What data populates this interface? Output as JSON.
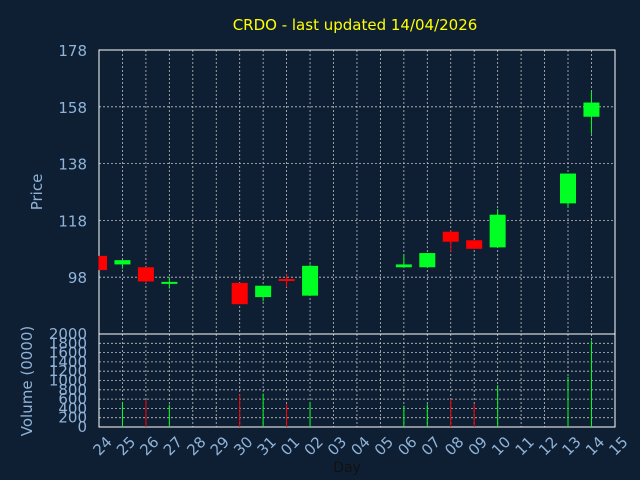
{
  "chart_data": {
    "type": "candlestick",
    "title": "CRDO - last updated 14/04/2026",
    "colors": {
      "background": "#0f1f33",
      "text": "#8fb3d9",
      "title": "#ffff00",
      "grid": "#c0c0c0",
      "up": "#00ff22",
      "down": "#ff0000",
      "frame": "#ffffff"
    },
    "grid": true,
    "x_axis": {
      "label": "Day",
      "ticks": [
        "24",
        "25",
        "26",
        "27",
        "28",
        "29",
        "30",
        "31",
        "01",
        "02",
        "03",
        "04",
        "05",
        "06",
        "07",
        "08",
        "09",
        "10",
        "11",
        "12",
        "13",
        "14",
        "15"
      ]
    },
    "price_axis": {
      "label": "Price",
      "range": [
        78,
        178
      ],
      "ticks": [
        178,
        158,
        138,
        118,
        98
      ]
    },
    "volume_axis": {
      "label": "Volume (0000)",
      "range": [
        0,
        2000
      ],
      "ticks": [
        2000,
        1800,
        1600,
        1400,
        1200,
        1000,
        800,
        600,
        400,
        200,
        0
      ]
    },
    "candles": [
      {
        "day": "24",
        "open": 105.5,
        "close": 100.5,
        "high": 105.5,
        "low": 100.5,
        "volume": 0
      },
      {
        "day": "25",
        "open": 102.5,
        "close": 104.0,
        "high": 104.0,
        "low": 101.0,
        "volume": 540
      },
      {
        "day": "26",
        "open": 101.5,
        "close": 96.5,
        "high": 101.5,
        "low": 96.0,
        "volume": 580
      },
      {
        "day": "27",
        "open": 95.5,
        "close": 96.0,
        "high": 98.0,
        "low": 94.0,
        "volume": 480
      },
      {
        "day": "30",
        "open": 96.0,
        "close": 88.5,
        "high": 96.0,
        "low": 88.5,
        "volume": 700
      },
      {
        "day": "31",
        "open": 91.0,
        "close": 95.0,
        "high": 95.0,
        "low": 89.5,
        "volume": 720
      },
      {
        "day": "01",
        "open": 97.0,
        "close": 96.5,
        "high": 99.0,
        "low": 94.5,
        "volume": 500
      },
      {
        "day": "02",
        "open": 91.5,
        "close": 102.0,
        "high": 102.5,
        "low": 91.5,
        "volume": 540
      },
      {
        "day": "06",
        "open": 101.5,
        "close": 102.5,
        "high": 106.0,
        "low": 101.5,
        "volume": 460
      },
      {
        "day": "07",
        "open": 101.5,
        "close": 106.5,
        "high": 106.5,
        "low": 101.5,
        "volume": 490
      },
      {
        "day": "08",
        "open": 114.0,
        "close": 110.5,
        "high": 114.5,
        "low": 107.0,
        "volume": 600
      },
      {
        "day": "09",
        "open": 111.0,
        "close": 108.0,
        "high": 111.0,
        "low": 108.0,
        "volume": 500
      },
      {
        "day": "10",
        "open": 108.5,
        "close": 120.0,
        "high": 122.0,
        "low": 108.5,
        "volume": 900
      },
      {
        "day": "13",
        "open": 124.0,
        "close": 134.5,
        "high": 134.5,
        "low": 122.5,
        "volume": 1080
      },
      {
        "day": "14",
        "open": 154.5,
        "close": 159.5,
        "high": 163.5,
        "low": 148.5,
        "volume": 1860
      }
    ]
  }
}
